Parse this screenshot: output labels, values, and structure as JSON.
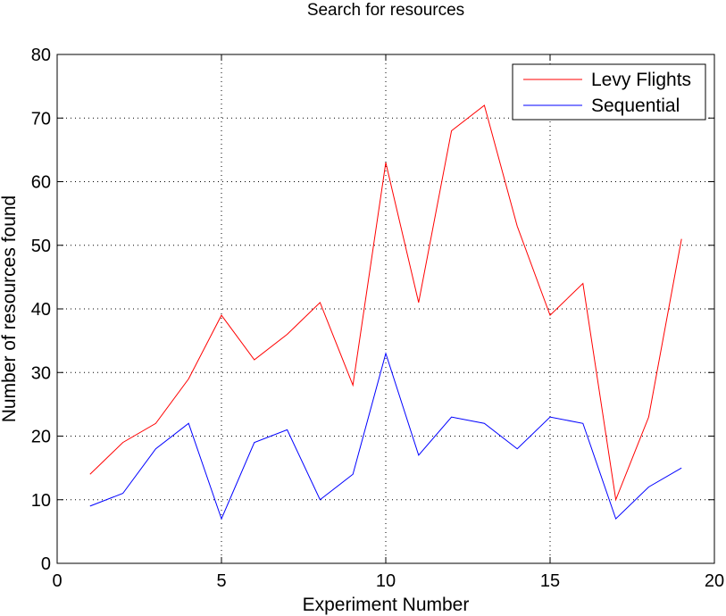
{
  "chart_data": {
    "type": "line",
    "title": "Search for resources",
    "xlabel": "Experiment Number",
    "ylabel": "Number of resources found",
    "xlim": [
      0,
      20
    ],
    "ylim": [
      0,
      80
    ],
    "xticks": [
      0,
      5,
      10,
      15,
      20
    ],
    "yticks": [
      0,
      10,
      20,
      30,
      40,
      50,
      60,
      70,
      80
    ],
    "xtick_labels": [
      "0",
      "5",
      "10",
      "15",
      "20"
    ],
    "ytick_labels": [
      "0",
      "10",
      "20",
      "30",
      "40",
      "50",
      "60",
      "70",
      "80"
    ],
    "grid": true,
    "legend_position": "top-right",
    "x": [
      1,
      2,
      3,
      4,
      5,
      6,
      7,
      8,
      9,
      10,
      11,
      12,
      13,
      14,
      15,
      16,
      17,
      18,
      19
    ],
    "series": [
      {
        "name": "Levy Flights",
        "color": "#ff0000",
        "values": [
          14,
          19,
          22,
          29,
          39,
          32,
          36,
          41,
          28,
          63,
          41,
          68,
          72,
          53,
          39,
          44,
          10,
          23,
          51
        ]
      },
      {
        "name": "Sequential",
        "color": "#0000ff",
        "values": [
          9,
          11,
          18,
          22,
          7,
          19,
          21,
          10,
          14,
          33,
          17,
          23,
          22,
          18,
          23,
          22,
          7,
          12,
          15
        ]
      }
    ]
  }
}
